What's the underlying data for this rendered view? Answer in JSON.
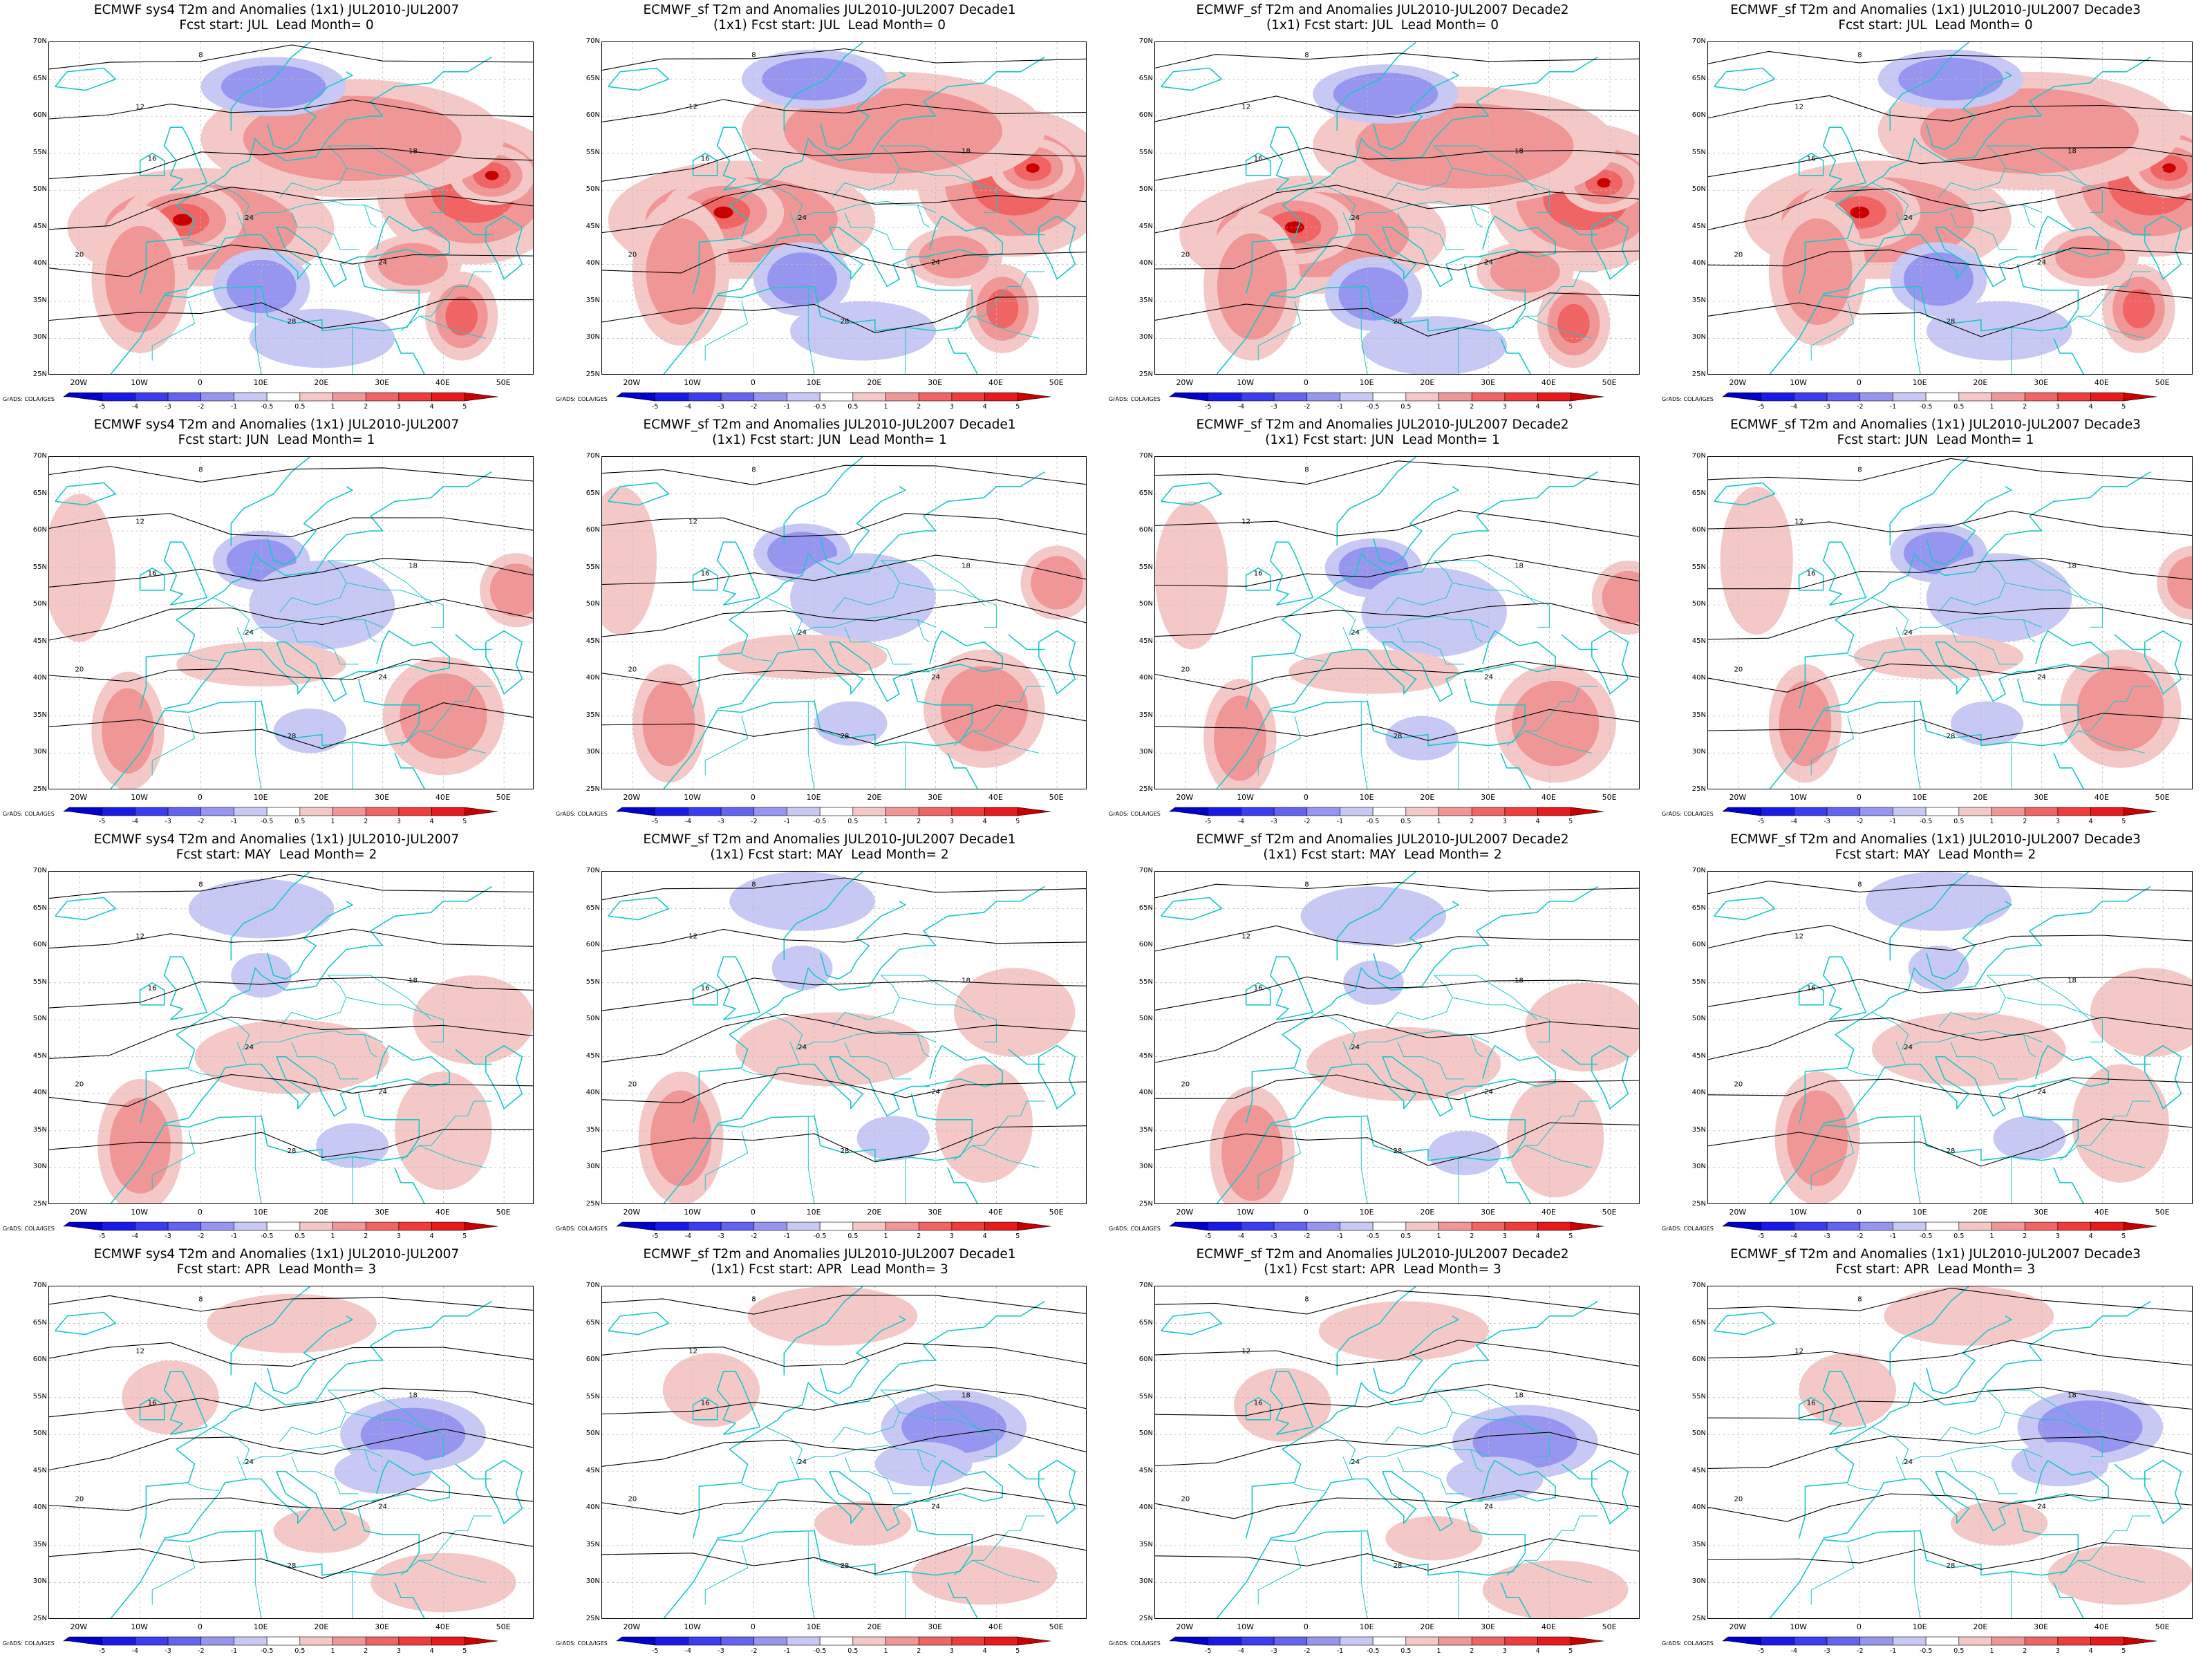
{
  "figure": {
    "panels": [
      {
        "line1": "ECMWF sys4 T2m and Anomalies (1x1) JUL2010-JUL2007",
        "line2": "Fcst start: JUL  Lead Month= 0",
        "lead": 0,
        "variant": 0
      },
      {
        "line1": "ECMWF_sf T2m and Anomalies JUL2010-JUL2007 Decade1",
        "line2": "(1x1) Fcst start: JUL  Lead Month= 0",
        "lead": 0,
        "variant": 1
      },
      {
        "line1": "ECMWF_sf T2m and Anomalies JUL2010-JUL2007 Decade2",
        "line2": "(1x1) Fcst start: JUL  Lead Month= 0",
        "lead": 0,
        "variant": 2
      },
      {
        "line1": "ECMWF_sf T2m and Anomalies (1x1) JUL2010-JUL2007 Decade3",
        "line2": "Fcst start: JUL  Lead Month= 0",
        "lead": 0,
        "variant": 3
      },
      {
        "line1": "ECMWF sys4 T2m and Anomalies (1x1) JUL2010-JUL2007",
        "line2": "Fcst start: JUN  Lead Month= 1",
        "lead": 1,
        "variant": 0
      },
      {
        "line1": "ECMWF_sf T2m and Anomalies JUL2010-JUL2007 Decade1",
        "line2": "(1x1) Fcst start: JUN  Lead Month= 1",
        "lead": 1,
        "variant": 1
      },
      {
        "line1": "ECMWF_sf T2m and Anomalies JUL2010-JUL2007 Decade2",
        "line2": "(1x1) Fcst start: JUN  Lead Month= 1",
        "lead": 1,
        "variant": 2
      },
      {
        "line1": "ECMWF_sf T2m and Anomalies (1x1) JUL2010-JUL2007 Decade3",
        "line2": "Fcst start: JUN  Lead Month= 1",
        "lead": 1,
        "variant": 3
      },
      {
        "line1": "ECMWF sys4 T2m and Anomalies (1x1) JUL2010-JUL2007",
        "line2": "Fcst start: MAY  Lead Month= 2",
        "lead": 2,
        "variant": 0
      },
      {
        "line1": "ECMWF_sf T2m and Anomalies JUL2010-JUL2007 Decade1",
        "line2": "(1x1) Fcst start: MAY  Lead Month= 2",
        "lead": 2,
        "variant": 1
      },
      {
        "line1": "ECMWF_sf T2m and Anomalies JUL2010-JUL2007 Decade2",
        "line2": "(1x1) Fcst start: MAY  Lead Month= 2",
        "lead": 2,
        "variant": 2
      },
      {
        "line1": "ECMWF_sf T2m and Anomalies (1x1) JUL2010-JUL2007 Decade3",
        "line2": "Fcst start: MAY  Lead Month= 2",
        "lead": 2,
        "variant": 3
      },
      {
        "line1": "ECMWF sys4 T2m and Anomalies (1x1) JUL2010-JUL2007",
        "line2": "Fcst start: APR  Lead Month= 3",
        "lead": 3,
        "variant": 0
      },
      {
        "line1": "ECMWF_sf T2m and Anomalies JUL2010-JUL2007 Decade1",
        "line2": "(1x1) Fcst start: APR  Lead Month= 3",
        "lead": 3,
        "variant": 1
      },
      {
        "line1": "ECMWF_sf T2m and Anomalies JUL2010-JUL2007 Decade2",
        "line2": "(1x1) Fcst start: APR  Lead Month= 3",
        "lead": 3,
        "variant": 2
      },
      {
        "line1": "ECMWF_sf T2m and Anomalies (1x1) JUL2010-JUL2007 Decade3",
        "line2": "Fcst start: APR  Lead Month= 3",
        "lead": 3,
        "variant": 3
      }
    ],
    "lat_labels": [
      "70N",
      "65N",
      "60N",
      "55N",
      "50N",
      "45N",
      "40N",
      "35N",
      "30N",
      "25N"
    ],
    "lon_labels": [
      "20W",
      "10W",
      "0",
      "10E",
      "20E",
      "30E",
      "40E",
      "50E"
    ],
    "colorbar": {
      "labels": [
        "-5",
        "-4",
        "-3",
        "-2",
        "-1",
        "-0.5",
        "0.5",
        "1",
        "2",
        "3",
        "4",
        "5"
      ],
      "colors": [
        "#0000c8",
        "#1a1ae6",
        "#3c3cf0",
        "#6464f0",
        "#9696f0",
        "#c8c8f5",
        "#ffffff",
        "#f5c8c8",
        "#f09696",
        "#f06464",
        "#f03c3c",
        "#e61a1a",
        "#c80000"
      ]
    },
    "credit": "GrADS: COLA/IGES",
    "colors": {
      "coast": "#19c8c8",
      "contour": "#000000",
      "frame": "#000000"
    }
  }
}
